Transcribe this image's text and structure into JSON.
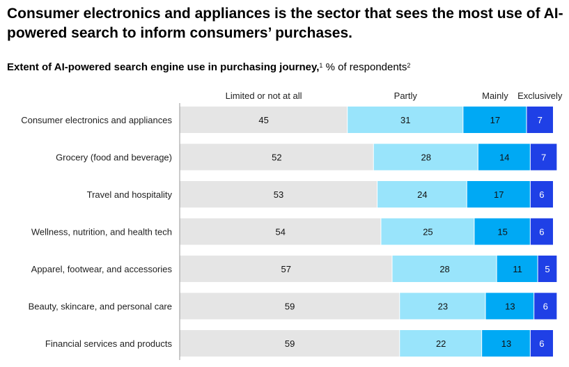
{
  "title": "Consumer electronics and appliances is the sector that sees the most use of AI-powered search to inform consumers’ purchases.",
  "subtitle": {
    "text": "Extent of AI-powered search engine use in purchasing journey,",
    "footnote1": "1",
    "unit": "% of respondents",
    "footnote2": "2"
  },
  "colors": {
    "Limited or not at all": "#e5e5e5",
    "Partly": "#99e4fb",
    "Mainly": "#00a9f4",
    "Exclusively": "#1f40e6"
  },
  "chart_data": {
    "type": "bar",
    "orientation": "horizontal",
    "stacked": true,
    "categories": [
      "Consumer electronics and appliances",
      "Grocery (food and beverage)",
      "Travel and hospitality",
      "Wellness, nutrition, and health tech",
      "Apparel, footwear, and accessories",
      "Beauty, skincare, and personal care",
      "Financial services and products"
    ],
    "series": [
      {
        "name": "Limited or not at all",
        "values": [
          45,
          52,
          53,
          54,
          57,
          59,
          59
        ]
      },
      {
        "name": "Partly",
        "values": [
          31,
          28,
          24,
          25,
          28,
          23,
          22
        ]
      },
      {
        "name": "Mainly",
        "values": [
          17,
          14,
          17,
          15,
          11,
          13,
          13
        ]
      },
      {
        "name": "Exclusively",
        "values": [
          7,
          7,
          6,
          6,
          5,
          6,
          6
        ]
      }
    ],
    "xlim": [
      0,
      100
    ],
    "legend": "top",
    "grid": false
  }
}
